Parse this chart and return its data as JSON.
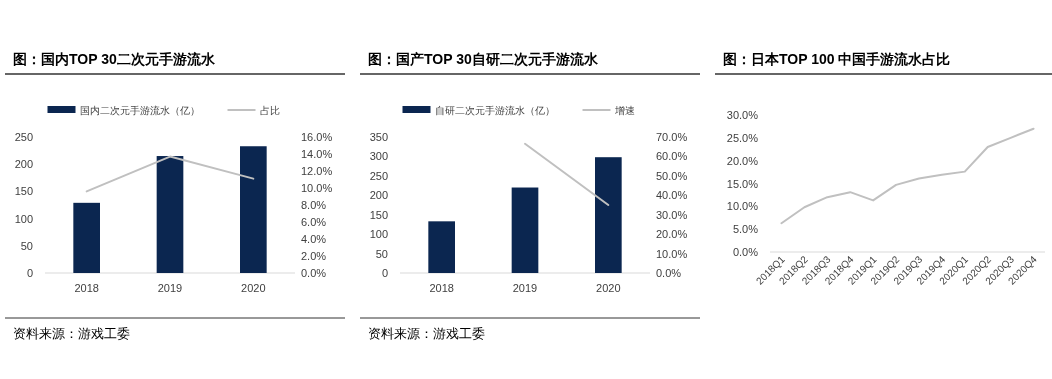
{
  "chart_data": [
    {
      "type": "bar",
      "title": "图：国内TOP 30二次元手游流水",
      "categories": [
        "2018",
        "2019",
        "2020"
      ],
      "series": [
        {
          "name": "国内二次元手游流水（亿）",
          "color": "#0b2650",
          "values": [
            129,
            215,
            233
          ]
        },
        {
          "name": "占比",
          "type": "line",
          "axis": "y2",
          "color": "#c0c0c0",
          "values": [
            9.6,
            13.7,
            11.1
          ]
        }
      ],
      "ylim": [
        0,
        250
      ],
      "yticks": [
        0,
        50,
        100,
        150,
        200,
        250
      ],
      "y2lim": [
        0,
        16
      ],
      "y2ticks": [
        {
          "value": 0,
          "label": "0.0%"
        },
        {
          "value": 2,
          "label": "2.0%"
        },
        {
          "value": 4,
          "label": "4.0%"
        },
        {
          "value": 6,
          "label": "6.0%"
        },
        {
          "value": 8,
          "label": "8.0%"
        },
        {
          "value": 10,
          "label": "10.0%"
        },
        {
          "value": 12,
          "label": "12.0%"
        },
        {
          "value": 14,
          "label": "14.0%"
        },
        {
          "value": 16,
          "label": "16.0%"
        }
      ],
      "legend": "top",
      "grid": false,
      "annotations": [
        "资料来源：游戏工委"
      ]
    },
    {
      "type": "bar",
      "title": "图：国产TOP 30自研二次元手游流水",
      "categories": [
        "2018",
        "2019",
        "2020"
      ],
      "series": [
        {
          "name": "自研二次元手游流水（亿）",
          "color": "#0b2650",
          "values": [
            133,
            220,
            298
          ]
        },
        {
          "name": "增速",
          "type": "line",
          "axis": "y2",
          "color": "#c0c0c0",
          "values": [
            null,
            66.5,
            35.0
          ]
        }
      ],
      "ylim": [
        0,
        350
      ],
      "yticks": [
        0,
        50,
        100,
        150,
        200,
        250,
        300,
        350
      ],
      "y2lim": [
        0,
        70
      ],
      "y2ticks": [
        {
          "value": 0,
          "label": "0.0%"
        },
        {
          "value": 10,
          "label": "10.0%"
        },
        {
          "value": 20,
          "label": "20.0%"
        },
        {
          "value": 30,
          "label": "30.0%"
        },
        {
          "value": 40,
          "label": "40.0%"
        },
        {
          "value": 50,
          "label": "50.0%"
        },
        {
          "value": 60,
          "label": "60.0%"
        },
        {
          "value": 70,
          "label": "70.0%"
        }
      ],
      "legend": "top",
      "grid": false,
      "annotations": [
        "资料来源：游戏工委"
      ]
    },
    {
      "type": "line",
      "title": "图：日本TOP 100 中国手游流水占比",
      "categories": [
        "2018Q1",
        "2018Q2",
        "2018Q3",
        "2018Q4",
        "2019Q1",
        "2019Q2",
        "2019Q3",
        "2019Q4",
        "2020Q1",
        "2020Q2",
        "2020Q3",
        "2020Q4"
      ],
      "color": "#c0c0c0",
      "values": [
        6.3,
        9.8,
        12.0,
        13.1,
        11.3,
        14.7,
        16.1,
        16.9,
        17.6,
        23.0,
        25.0,
        27.0
      ],
      "ylim": [
        0,
        30
      ],
      "yticks": [
        {
          "value": 0,
          "label": "0.0%"
        },
        {
          "value": 5,
          "label": "5.0%"
        },
        {
          "value": 10,
          "label": "10.0%"
        },
        {
          "value": 15,
          "label": "15.0%"
        },
        {
          "value": 20,
          "label": "20.0%"
        },
        {
          "value": 25,
          "label": "25.0%"
        },
        {
          "value": 30,
          "label": "30.0%"
        }
      ],
      "grid": false
    }
  ]
}
